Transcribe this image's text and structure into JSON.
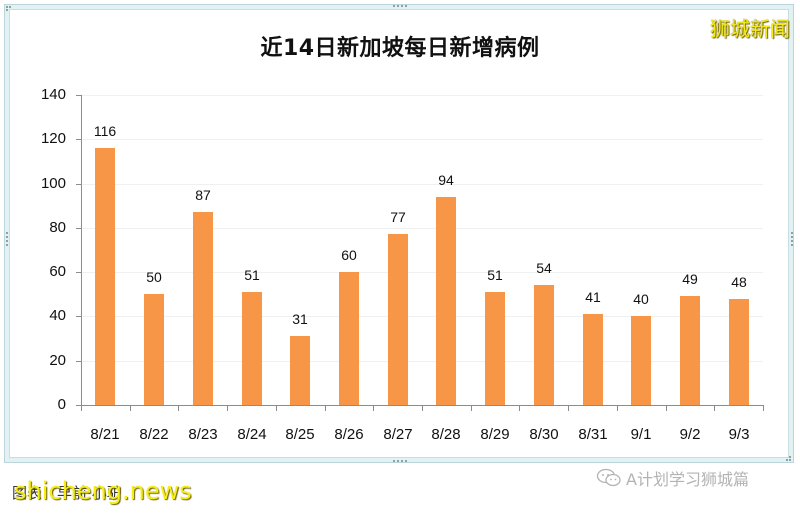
{
  "chart_data": {
    "type": "bar",
    "title": "近14日新加坡每日新增病例",
    "categories": [
      "8/21",
      "8/22",
      "8/23",
      "8/24",
      "8/25",
      "8/26",
      "8/27",
      "8/28",
      "8/29",
      "8/30",
      "8/31",
      "9/1",
      "9/2",
      "9/3"
    ],
    "values": [
      116,
      50,
      87,
      51,
      31,
      60,
      77,
      94,
      51,
      54,
      41,
      40,
      49,
      48
    ],
    "series": [
      {
        "name": "每日新增病例",
        "values": [
          116,
          50,
          87,
          51,
          31,
          60,
          77,
          94,
          51,
          54,
          41,
          40,
          49,
          48
        ],
        "color": "#F79646"
      }
    ],
    "xlabel": "",
    "ylabel": "",
    "ylim": [
      0,
      140
    ],
    "yticks": [
      0,
      20,
      40,
      60,
      80,
      100,
      120,
      140
    ],
    "grid": true,
    "legend": "none",
    "data_labels": true
  },
  "header": {
    "title": "近14日新加坡每日新增病例",
    "brand": "狮城新闻"
  },
  "axis": {
    "y_ticks": [
      "140",
      "120",
      "100",
      "80",
      "60",
      "40",
      "20",
      "0"
    ]
  },
  "footer": {
    "source": "图表：早前·小驴",
    "site_watermark": "shicheng.news",
    "wechat_account": "A计划学习狮城篇"
  },
  "colors": {
    "bar": "#F79646",
    "frame": "#B9D7DA",
    "brand_yellow": "#F5EC1A"
  }
}
